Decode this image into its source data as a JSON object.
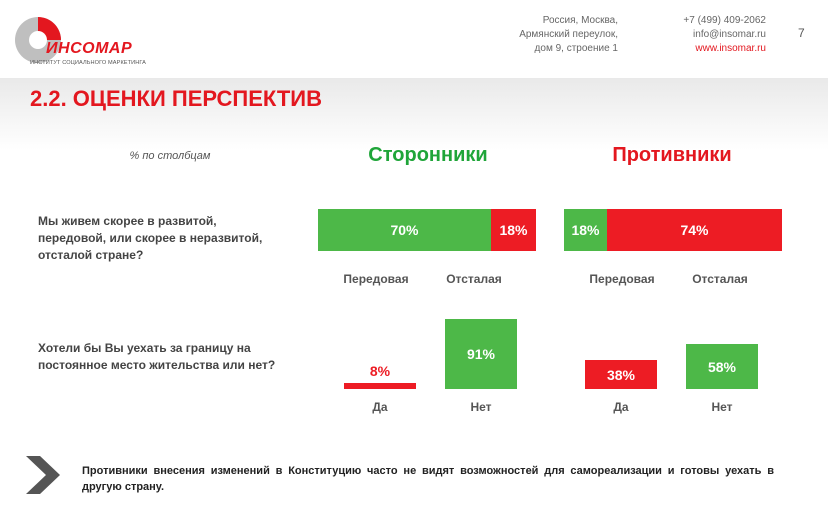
{
  "header": {
    "logo_name": "ИНСОМАР",
    "logo_sub": "ИНСТИТУТ СОЦИАЛЬНОГО МАРКЕТИНГА",
    "address": [
      "Россия, Москва,",
      "Армянский переулок,",
      "дом 9, строение 1"
    ],
    "phone": "+7 (499) 409-2062",
    "email": "info@insomar.ru",
    "website": "www.insomar.ru",
    "page_number": "7"
  },
  "colors": {
    "green": "#4db848",
    "red": "#ed1c24"
  },
  "chart_data": {
    "type": "bar",
    "title": "2.2. ОЦЕНКИ ПЕРСПЕКТИВ",
    "note": "% по столбцам",
    "groups": [
      "Сторонники",
      "Противники"
    ],
    "questions": [
      {
        "text": "Мы живем скорее в развитой, передовой, или скорее в неразвитой, отсталой стране?",
        "chart": "stacked-horizontal",
        "categories": [
          "Передовая",
          "Отсталая"
        ],
        "values": {
          "Сторонники": [
            70,
            18
          ],
          "Противники": [
            18,
            74
          ]
        },
        "labels": {
          "Сторонники": [
            "70%",
            "18%"
          ],
          "Противники": [
            "18%",
            "74%"
          ]
        }
      },
      {
        "text": "Хотели бы Вы уехать за границу на постоянное место жительства или нет?",
        "chart": "vertical",
        "categories": [
          "Да",
          "Нет"
        ],
        "values": {
          "Сторонники": [
            8,
            91
          ],
          "Противники": [
            38,
            58
          ]
        },
        "labels": {
          "Сторонники": [
            "8%",
            "91%"
          ],
          "Противники": [
            "38%",
            "58%"
          ]
        }
      }
    ]
  },
  "footer": {
    "text": "Противники внесения изменений в Конституцию часто не видят возможностей для самореализации и готовы уехать в другую страну."
  }
}
